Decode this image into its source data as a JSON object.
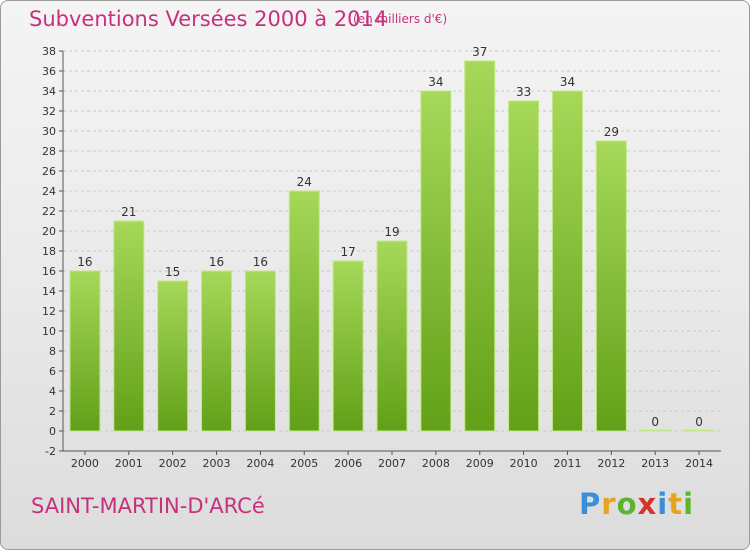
{
  "header": {
    "title": "Subventions Versées 2000 à 2014",
    "unit": "(en milliers d'€)"
  },
  "footer": {
    "commune": "SAINT-MARTIN-D'ARCé",
    "logo_letters": [
      "P",
      "r",
      "o",
      "x",
      "i",
      "t",
      "i"
    ],
    "logo_colors": [
      "#3a8fd6",
      "#e8a21b",
      "#5bb531",
      "#d4342f",
      "#3a8fd6",
      "#e8a21b",
      "#5bb531"
    ]
  },
  "colors": {
    "bar_fill_light": "#a6d85a",
    "bar_fill_dark": "#62a018",
    "bar_edge": "#c3e884",
    "grid": "#c9c9c9",
    "title": "#c8307e"
  },
  "chart_data": {
    "type": "bar",
    "title": "Subventions Versées 2000 à 2014",
    "subtitle": "(en milliers d'€)",
    "xlabel": "",
    "ylabel": "",
    "categories": [
      "2000",
      "2001",
      "2002",
      "2003",
      "2004",
      "2005",
      "2006",
      "2007",
      "2008",
      "2009",
      "2010",
      "2011",
      "2012",
      "2013",
      "2014"
    ],
    "values": [
      16,
      21,
      15,
      16,
      16,
      24,
      17,
      19,
      34,
      37,
      33,
      34,
      29,
      0,
      0
    ],
    "ylim": [
      -2,
      38
    ],
    "yticks": [
      -2,
      0,
      2,
      4,
      6,
      8,
      10,
      12,
      14,
      16,
      18,
      20,
      22,
      24,
      26,
      28,
      30,
      32,
      34,
      36,
      38
    ],
    "grid": "horizontal dashed",
    "legend": "none"
  }
}
